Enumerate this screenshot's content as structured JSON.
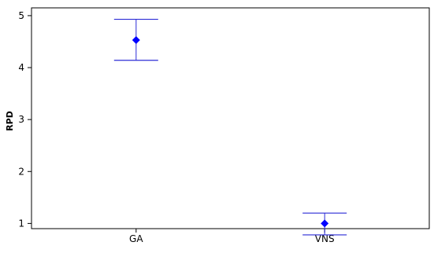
{
  "chart_data": {
    "type": "scatter",
    "variant": "interval plot (mean with error bars)",
    "title": "",
    "xlabel": "",
    "ylabel": "RPD",
    "categories": [
      "GA",
      "VNS"
    ],
    "series": [
      {
        "mean": [
          4.53,
          1.0
        ],
        "lower": [
          4.14,
          0.78
        ],
        "upper": [
          4.93,
          1.2
        ]
      }
    ],
    "ylim": [
      0.9,
      5.15
    ],
    "yticks": [
      1,
      2,
      3,
      4,
      5
    ],
    "grid": false,
    "legend": "none",
    "colors": {
      "marker": "#0000ff",
      "interval": "#2b2bd6",
      "axis": "#000000"
    }
  }
}
